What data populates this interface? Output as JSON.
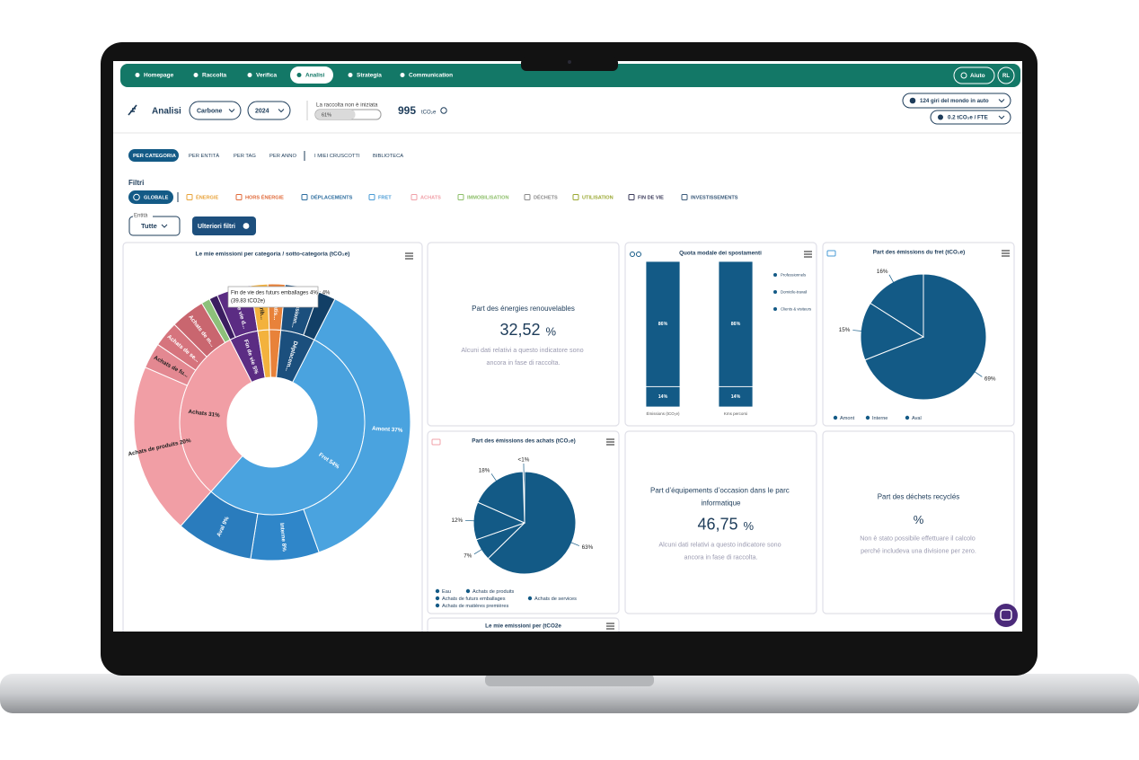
{
  "nav": {
    "items": [
      "Homepage",
      "Raccolta",
      "Verifica",
      "Analisi",
      "Strategia",
      "Communication"
    ],
    "active": 3,
    "help": "Aiuto",
    "user": "RL"
  },
  "header": {
    "title": "Analisi",
    "scope": "Carbone",
    "year": "2024",
    "status": "La raccolta non è iniziata",
    "progress": 61,
    "progress_label": "61%",
    "total": "995",
    "unit": "tCO₂e",
    "equiv": "124 giri del mondo in auto",
    "per_fte": "0.2 tCO₂e / FTE"
  },
  "tabs": {
    "items": [
      "PER CATEGORIA",
      "PER ENTITÀ",
      "PER TAG",
      "PER ANNO",
      "I MIEI CRUSCOTTI",
      "BIBLIOTECA"
    ],
    "active": 0
  },
  "filters": {
    "title": "Filtri",
    "active": 0,
    "items": [
      {
        "label": "GLOBALE",
        "color": "#135a86"
      },
      {
        "label": "ÉNERGIE",
        "color": "#e8a33a"
      },
      {
        "label": "HORS ÉNERGIE",
        "color": "#e06a3a"
      },
      {
        "label": "DÉPLACEMENTS",
        "color": "#2b6c9e"
      },
      {
        "label": "FRET",
        "color": "#4a9bd6"
      },
      {
        "label": "ACHATS",
        "color": "#f0a0a8"
      },
      {
        "label": "IMMOBILISATION",
        "color": "#8dbf6a"
      },
      {
        "label": "DÉCHETS",
        "color": "#8a8a8a"
      },
      {
        "label": "UTILISATION",
        "color": "#9aa832"
      },
      {
        "label": "FIN DE VIE",
        "color": "#3a3a5a"
      },
      {
        "label": "INVESTISSEMENTS",
        "color": "#3a5a7a"
      }
    ],
    "entity_label": "Entità",
    "entity_value": "Tutte",
    "more": "Ulteriori filtri"
  },
  "cards": [
    {
      "type": "sunburst",
      "title": "Le mie emissioni per categoria / sotto-categoria (tCO₂e)",
      "inner": {
        "labels": [
          "Fret 54%",
          "Achats 31%",
          "Fin de vie 5%",
          null,
          null,
          "Déplacem..."
        ],
        "values": [
          54,
          31,
          5,
          2,
          2,
          6
        ],
        "colors": [
          "#4aa3df",
          "#f19ea5",
          "#5b2c83",
          "#f3b23d",
          "#e8823a",
          "#1b4f7d"
        ]
      },
      "outer": {
        "labels": [
          "Amont 37%",
          "Interne 8%",
          "Aval 9%",
          "Achats de produits 20%",
          "Achats de fu...",
          "Achats de se...",
          "Achats de m...",
          null,
          null,
          "Fin de vie d...",
          "Contrib...",
          "Climatis...",
          "Professionn...",
          null
        ],
        "values": [
          37,
          8,
          9,
          20,
          3,
          3,
          4,
          1,
          1,
          4,
          2,
          2,
          4,
          2
        ],
        "colors": [
          "#4aa3df",
          "#2f86c9",
          "#2a7cbd",
          "#f19ea5",
          "#e38891",
          "#d6747d",
          "#c9666f",
          "#8dc07a",
          "#3b1d60",
          "#5b2c83",
          "#f3b23d",
          "#e8823a",
          "#1b4f7d",
          "#123f66"
        ]
      },
      "tooltip": [
        "Fin de vie des futurs emballages 4% : 4%",
        "(39.83 tCO2e)"
      ]
    },
    {
      "type": "kpi",
      "title": "Part des énergies renouvelables",
      "value": "32,52",
      "unit": "%",
      "note": "Alcuni dati relativi a questo indicatore sono ancora in fase di raccolta."
    },
    {
      "type": "stacked_bar",
      "title": "Quota modale dei spostamenti",
      "categories": [
        "Émissions (tCO₂e)",
        "Kms percorsi"
      ],
      "ylim": [
        0,
        100
      ],
      "series": [
        {
          "name": "Professionnels",
          "color": "#135a86",
          "values": [
            86,
            86
          ],
          "value_labels": [
            "86%",
            "86%"
          ]
        },
        {
          "name": "Domicile-travail",
          "color": "#135a86",
          "values": [
            14,
            14
          ],
          "value_labels": [
            "14%",
            "14%"
          ]
        },
        {
          "name": "Clients & visiteurs",
          "color": "#135a86",
          "values": [
            0,
            0
          ],
          "value_labels": [
            "0%",
            "0%"
          ]
        }
      ]
    },
    {
      "type": "pie",
      "title": "Part des émissions du fret (tCO₂e)",
      "color": "#135a86",
      "categories": [
        "Amont",
        "Interne",
        "Aval"
      ],
      "values": [
        69,
        15,
        16
      ],
      "value_labels": [
        "69%",
        "15%",
        "16%"
      ]
    },
    {
      "type": "pie",
      "title": "Part des émissions des achats (tCO₂e)",
      "color": "#135a86",
      "categories": [
        "Eau",
        "Achats de produits",
        "Achats de futurs emballages",
        "Achats de services",
        "Achats de matières premières"
      ],
      "values": [
        0.5,
        63,
        7,
        12,
        18
      ],
      "value_labels": [
        "<1%",
        "63%",
        "7%",
        "12%",
        "18%"
      ]
    },
    {
      "type": "kpi",
      "title": "Part d’équipements d’occasion dans le parc informatique",
      "value": "46,75",
      "unit": "%",
      "note": "Alcuni dati relativi a questo indicatore sono ancora in fase di raccolta."
    },
    {
      "type": "kpi",
      "title": "Part des déchets recyclés",
      "unit": "%",
      "note": "Non è stato possibile effettuare il calcolo perché includeva una divisione per zero."
    },
    {
      "type": "title_only",
      "title": "Le mie emissioni per (tCO2e"
    }
  ]
}
